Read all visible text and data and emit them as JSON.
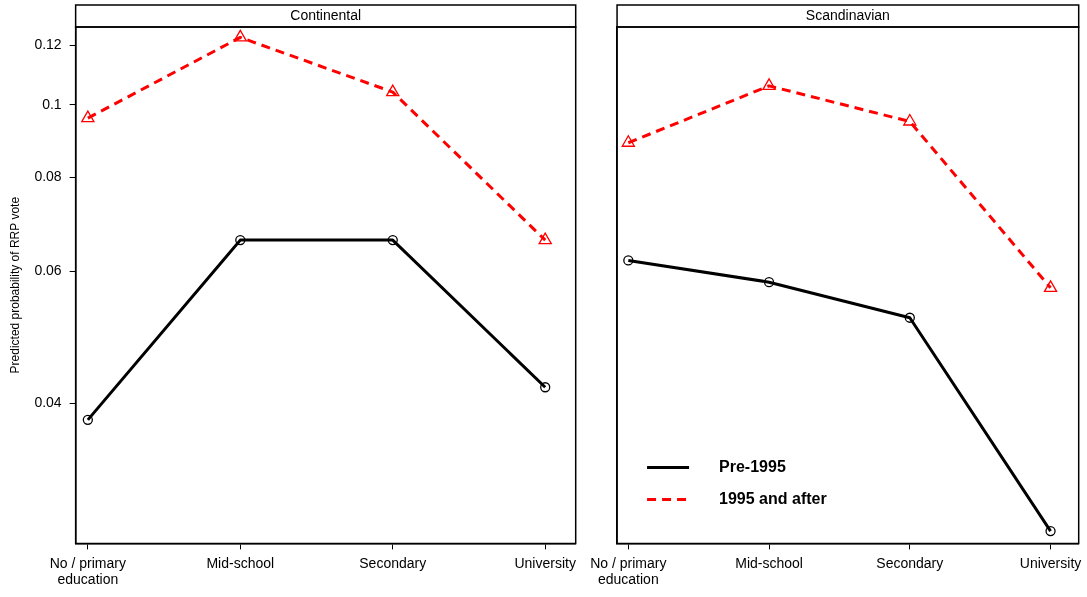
{
  "chart_data": [
    {
      "type": "line",
      "title": "Continental",
      "ylabel": "Predicted probability of RRP vote",
      "categories": [
        "No / primary education",
        "Mid-school",
        "Secondary",
        "University"
      ],
      "log": true,
      "ylim": [
        0.026,
        0.127
      ],
      "yticks": [
        0.04,
        0.06,
        0.08,
        0.1,
        0.12
      ],
      "grid": false,
      "legend": false,
      "series": [
        {
          "color": "#000000",
          "marker": "circle",
          "line_style": "solid",
          "values": [
            0.038,
            0.066,
            0.066,
            0.042
          ]
        },
        {
          "color": "#ff0000",
          "marker": "triangle",
          "line_style": "dashed",
          "values": [
            0.096,
            0.123,
            0.104,
            0.066
          ]
        }
      ]
    },
    {
      "type": "line",
      "title": "Scandinavian",
      "categories": [
        "No / primary education",
        "Mid-school",
        "Secondary",
        "University"
      ],
      "log": true,
      "ylim": [
        0.026,
        0.127
      ],
      "yticks": [
        0.04,
        0.06,
        0.08,
        0.1,
        0.12
      ],
      "tick_labels": "x",
      "grid": false,
      "legend": "bottom left",
      "series": [
        {
          "name": "Pre-1995",
          "color": "#000000",
          "marker": "circle",
          "line_style": "solid",
          "values": [
            0.062,
            0.058,
            0.052,
            0.027
          ]
        },
        {
          "name": "1995 and after",
          "color": "#ff0000",
          "marker": "triangle",
          "line_style": "dashed",
          "values": [
            0.089,
            0.106,
            0.095,
            0.057
          ]
        }
      ]
    }
  ]
}
